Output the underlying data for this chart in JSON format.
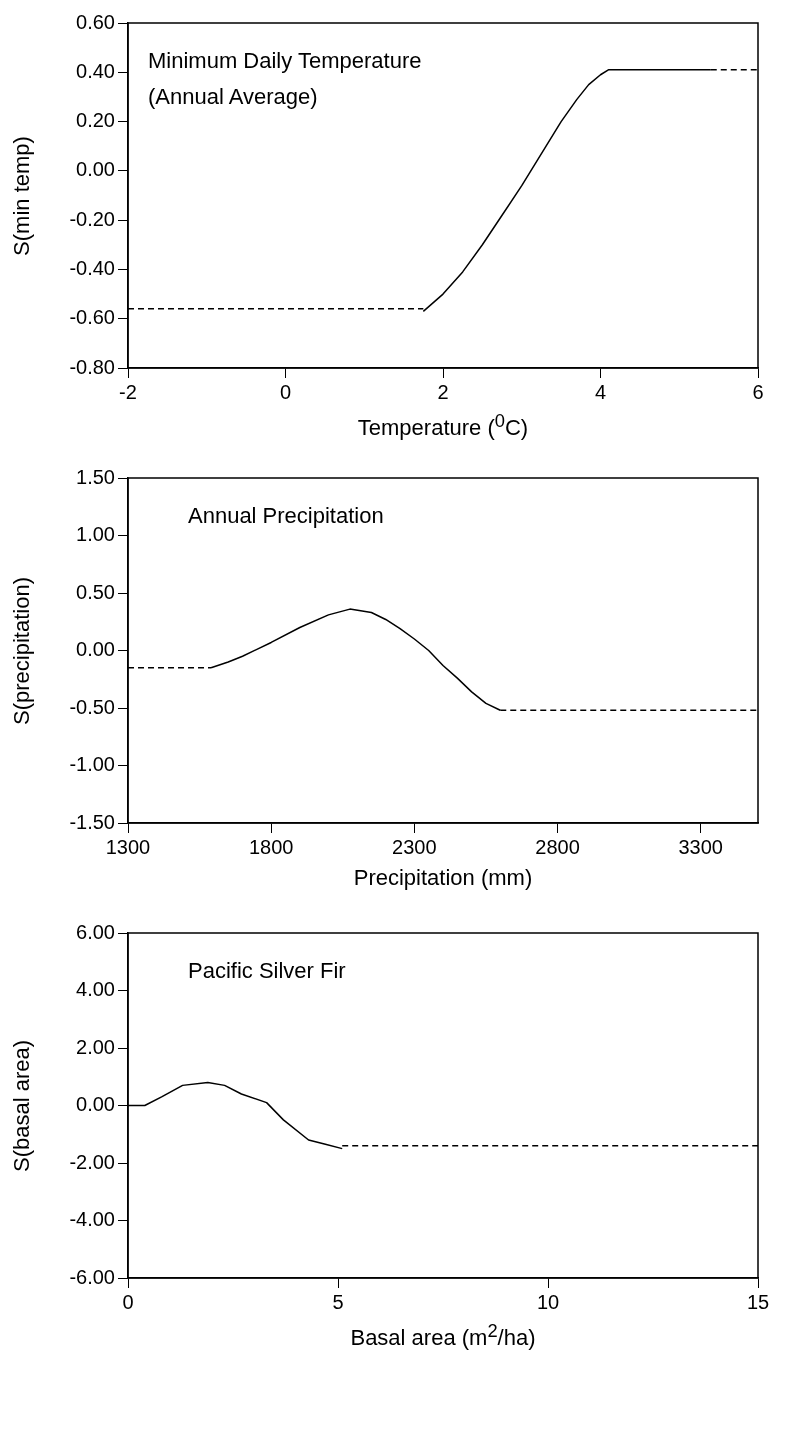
{
  "chart_data": [
    {
      "type": "line",
      "title": "Minimum Daily Temperature\n(Annual Average)",
      "xlabel": "Temperature ($^{0}$C)",
      "ylabel": "S(min temp)",
      "xlim": [
        -2,
        6
      ],
      "xticks": [
        -2,
        0,
        2,
        4,
        6
      ],
      "ylim": [
        -0.8,
        0.6
      ],
      "yticks": [
        {
          "value": -0.8,
          "label": "-0.80"
        },
        {
          "value": -0.6,
          "label": "-0.60"
        },
        {
          "value": -0.4,
          "label": "-0.40"
        },
        {
          "value": -0.2,
          "label": "-0.20"
        },
        {
          "value": 0,
          "label": "0.00"
        },
        {
          "value": 0.2,
          "label": "0.20"
        },
        {
          "value": 0.4,
          "label": "0.40"
        },
        {
          "value": 0.6,
          "label": "0.60"
        }
      ],
      "grid": false,
      "legend": false,
      "marker": "none",
      "series": [
        {
          "color": "#000000",
          "line_style": "dashed",
          "x": [
            -2,
            1.75
          ],
          "values": [
            -0.56,
            -0.56
          ]
        },
        {
          "color": "#000000",
          "line_style": "solid",
          "x": [
            1.75,
            2.0,
            2.25,
            2.5,
            2.75,
            3.0,
            3.25,
            3.5,
            3.7,
            3.85,
            4.0,
            4.1,
            5.4
          ],
          "values": [
            -0.57,
            -0.5,
            -0.41,
            -0.3,
            -0.18,
            -0.06,
            0.07,
            0.2,
            0.29,
            0.35,
            0.39,
            0.41,
            0.41
          ]
        },
        {
          "color": "#000000",
          "line_style": "dashed",
          "x": [
            5.4,
            6
          ],
          "values": [
            0.41,
            0.41
          ]
        }
      ]
    },
    {
      "type": "line",
      "title": "Annual Precipitation",
      "xlabel": "Precipitation (mm)",
      "ylabel": "S(precipitation)",
      "xlim": [
        1300,
        3500
      ],
      "xticks": [
        1300,
        1800,
        2300,
        2800,
        3300
      ],
      "ylim": [
        -1.5,
        1.5
      ],
      "yticks": [
        {
          "value": -1.5,
          "label": "-1.50"
        },
        {
          "value": -1,
          "label": "-1.00"
        },
        {
          "value": -0.5,
          "label": "-0.50"
        },
        {
          "value": 0,
          "label": "0.00"
        },
        {
          "value": 0.5,
          "label": "0.50"
        },
        {
          "value": 1,
          "label": "1.00"
        },
        {
          "value": 1.5,
          "label": "1.50"
        }
      ],
      "grid": false,
      "legend": false,
      "marker": "none",
      "series": [
        {
          "color": "#000000",
          "line_style": "dashed",
          "x": [
            1300,
            1590
          ],
          "values": [
            -0.15,
            -0.15
          ]
        },
        {
          "color": "#000000",
          "line_style": "solid",
          "x": [
            1590,
            1650,
            1700,
            1800,
            1900,
            2000,
            2075,
            2150,
            2200,
            2250,
            2300,
            2350,
            2400,
            2450,
            2500,
            2550,
            2600
          ],
          "values": [
            -0.15,
            -0.1,
            -0.05,
            0.07,
            0.2,
            0.31,
            0.36,
            0.33,
            0.27,
            0.19,
            0.1,
            0.0,
            -0.13,
            -0.24,
            -0.36,
            -0.46,
            -0.52
          ]
        },
        {
          "color": "#000000",
          "line_style": "dashed",
          "x": [
            2600,
            3500
          ],
          "values": [
            -0.52,
            -0.52
          ]
        }
      ]
    },
    {
      "type": "line",
      "title": "Pacific Silver Fir",
      "xlabel": "Basal area (m$^{2}$/ha)",
      "ylabel": "S(basal area)",
      "xlim": [
        0,
        15
      ],
      "xticks": [
        0,
        5,
        10,
        15
      ],
      "ylim": [
        -6,
        6
      ],
      "yticks": [
        {
          "value": -6,
          "label": "-6.00"
        },
        {
          "value": -4,
          "label": "-4.00"
        },
        {
          "value": -2,
          "label": "-2.00"
        },
        {
          "value": 0,
          "label": "0.00"
        },
        {
          "value": 2,
          "label": "2.00"
        },
        {
          "value": 4,
          "label": "4.00"
        },
        {
          "value": 6,
          "label": "6.00"
        }
      ],
      "grid": false,
      "legend": false,
      "marker": "none",
      "series": [
        {
          "color": "#000000",
          "line_style": "solid",
          "x": [
            0,
            0.4,
            0.8,
            1.3,
            1.9,
            2.3,
            2.7,
            3.3,
            3.7,
            4.3,
            4.7,
            5.1
          ],
          "values": [
            0,
            0,
            0.3,
            0.7,
            0.8,
            0.7,
            0.4,
            0.1,
            -0.5,
            -1.2,
            -1.35,
            -1.5
          ]
        },
        {
          "color": "#000000",
          "line_style": "dashed",
          "x": [
            5.1,
            15
          ],
          "values": [
            -1.4,
            -1.4
          ]
        }
      ]
    }
  ]
}
